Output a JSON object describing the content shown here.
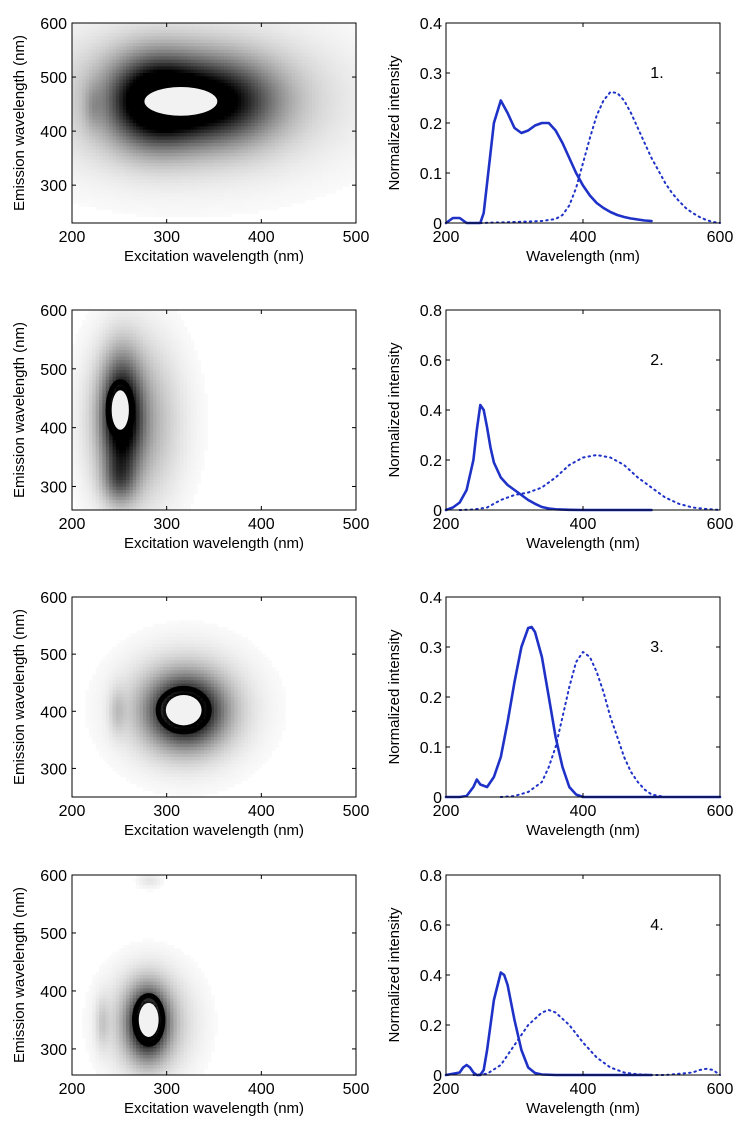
{
  "colors": {
    "spectrum": "#1f32c8",
    "axis": "#000000",
    "background": "#ffffff"
  },
  "panels": [
    {
      "contour": {
        "type": "heatmap",
        "xlabel": "Excitation wavelength (nm)",
        "ylabel": "Emission wavelength (nm)",
        "xlim": [
          200,
          500
        ],
        "ylim": [
          230,
          600
        ],
        "xticks": [
          200,
          300,
          400,
          500
        ],
        "yticks": [
          300,
          400,
          500,
          600
        ],
        "blobs": [
          {
            "cx": 285,
            "cy": 455,
            "sx": 32,
            "sy": 55,
            "a": 0.95
          },
          {
            "cx": 350,
            "cy": 455,
            "sx": 45,
            "sy": 52,
            "a": 0.85
          },
          {
            "cx": 320,
            "cy": 460,
            "sx": 110,
            "sy": 95,
            "a": 0.28
          },
          {
            "cx": 222,
            "cy": 445,
            "sx": 6,
            "sy": 28,
            "a": 0.12
          }
        ],
        "ring": {
          "x": 315,
          "y": 455,
          "rx": 55,
          "ry": 38
        }
      },
      "spectra": {
        "type": "line",
        "label": "1.",
        "xlabel": "Wavelength (nm)",
        "ylabel": "Normalized intensity",
        "xlim": [
          200,
          600
        ],
        "ylim": [
          0,
          0.4
        ],
        "xticks": [
          200,
          400,
          600
        ],
        "yticks": [
          0,
          0.1,
          0.2,
          0.3,
          0.4
        ],
        "series": [
          {
            "style": "solid",
            "x": [
              200,
              210,
              220,
              230,
              240,
              250,
              255,
              260,
              270,
              280,
              290,
              300,
              310,
              320,
              330,
              340,
              350,
              360,
              370,
              380,
              390,
              400,
              410,
              420,
              430,
              440,
              450,
              460,
              470,
              480,
              490,
              500
            ],
            "y": [
              0,
              0.01,
              0.01,
              0,
              0,
              0,
              0.02,
              0.08,
              0.2,
              0.245,
              0.22,
              0.19,
              0.18,
              0.185,
              0.195,
              0.2,
              0.2,
              0.185,
              0.16,
              0.13,
              0.1,
              0.075,
              0.055,
              0.04,
              0.03,
              0.022,
              0.016,
              0.012,
              0.009,
              0.007,
              0.005,
              0.004
            ]
          },
          {
            "style": "dotted",
            "x": [
              250,
              300,
              340,
              360,
              370,
              380,
              390,
              400,
              410,
              420,
              430,
              440,
              450,
              460,
              470,
              480,
              490,
              500,
              510,
              520,
              530,
              540,
              550,
              560,
              570,
              580,
              590,
              600
            ],
            "y": [
              0,
              0.002,
              0.004,
              0.008,
              0.016,
              0.035,
              0.07,
              0.12,
              0.17,
              0.215,
              0.245,
              0.262,
              0.26,
              0.245,
              0.22,
              0.19,
              0.16,
              0.13,
              0.105,
              0.08,
              0.06,
              0.044,
              0.03,
              0.02,
              0.012,
              0.006,
              0.002,
              0
            ]
          }
        ]
      }
    },
    {
      "contour": {
        "type": "heatmap",
        "xlabel": "Excitation wavelength (nm)",
        "ylabel": "Emission wavelength (nm)",
        "xlim": [
          200,
          500
        ],
        "ylim": [
          260,
          600
        ],
        "xticks": [
          200,
          300,
          400,
          500
        ],
        "yticks": [
          300,
          400,
          500,
          600
        ],
        "blobs": [
          {
            "cx": 252,
            "cy": 420,
            "sx": 14,
            "sy": 65,
            "a": 0.95
          },
          {
            "cx": 265,
            "cy": 410,
            "sx": 32,
            "sy": 95,
            "a": 0.38
          },
          {
            "cx": 250,
            "cy": 310,
            "sx": 12,
            "sy": 28,
            "a": 0.35
          }
        ],
        "ring": {
          "x": 251,
          "y": 430,
          "rx": 13,
          "ry": 48
        }
      },
      "spectra": {
        "type": "line",
        "label": "2.",
        "xlabel": "Wavelength (nm)",
        "ylabel": "Normalized intensity",
        "xlim": [
          200,
          600
        ],
        "ylim": [
          0,
          0.8
        ],
        "xticks": [
          200,
          400,
          600
        ],
        "yticks": [
          0,
          0.2,
          0.4,
          0.6,
          0.8
        ],
        "series": [
          {
            "style": "solid",
            "x": [
              200,
              210,
              220,
              230,
              240,
              245,
              250,
              255,
              260,
              265,
              270,
              280,
              290,
              300,
              310,
              320,
              330,
              340,
              350,
              360,
              380,
              400,
              450,
              500
            ],
            "y": [
              0,
              0.01,
              0.03,
              0.08,
              0.2,
              0.32,
              0.42,
              0.4,
              0.33,
              0.25,
              0.19,
              0.13,
              0.1,
              0.08,
              0.06,
              0.04,
              0.025,
              0.012,
              0.006,
              0.003,
              0.001,
              0,
              0,
              0
            ]
          },
          {
            "style": "dotted",
            "x": [
              220,
              240,
              260,
              280,
              300,
              320,
              340,
              360,
              380,
              400,
              420,
              440,
              460,
              480,
              500,
              520,
              540,
              560,
              580,
              600
            ],
            "y": [
              0,
              0.002,
              0.01,
              0.04,
              0.06,
              0.07,
              0.09,
              0.13,
              0.18,
              0.21,
              0.22,
              0.21,
              0.18,
              0.13,
              0.09,
              0.05,
              0.025,
              0.01,
              0.004,
              0
            ]
          }
        ]
      }
    },
    {
      "contour": {
        "type": "heatmap",
        "xlabel": "Excitation wavelength (nm)",
        "ylabel": "Emission wavelength (nm)",
        "xlim": [
          200,
          500
        ],
        "ylim": [
          250,
          600
        ],
        "xticks": [
          200,
          300,
          400,
          500
        ],
        "yticks": [
          300,
          400,
          500,
          600
        ],
        "blobs": [
          {
            "cx": 320,
            "cy": 400,
            "sx": 26,
            "sy": 40,
            "a": 0.95
          },
          {
            "cx": 320,
            "cy": 405,
            "sx": 45,
            "sy": 65,
            "a": 0.32
          },
          {
            "cx": 248,
            "cy": 400,
            "sx": 6,
            "sy": 28,
            "a": 0.16
          }
        ],
        "ring": {
          "x": 318,
          "y": 402,
          "rx": 27,
          "ry": 38
        }
      },
      "spectra": {
        "type": "line",
        "label": "3.",
        "xlabel": "Wavelength (nm)",
        "ylabel": "Normalized intensity",
        "xlim": [
          200,
          600
        ],
        "ylim": [
          0,
          0.4
        ],
        "xticks": [
          200,
          400,
          600
        ],
        "yticks": [
          0,
          0.1,
          0.2,
          0.3,
          0.4
        ],
        "series": [
          {
            "style": "solid",
            "x": [
              200,
              220,
              230,
              240,
              245,
              250,
              260,
              270,
              280,
              290,
              300,
              310,
              320,
              325,
              330,
              340,
              350,
              360,
              370,
              380,
              390,
              400,
              420,
              450,
              500,
              600
            ],
            "y": [
              0,
              0,
              0.002,
              0.02,
              0.035,
              0.025,
              0.02,
              0.04,
              0.08,
              0.15,
              0.23,
              0.3,
              0.338,
              0.34,
              0.33,
              0.28,
              0.2,
              0.12,
              0.06,
              0.02,
              0.005,
              0,
              0,
              0,
              0,
              0
            ]
          },
          {
            "style": "dotted",
            "x": [
              280,
              300,
              320,
              340,
              350,
              360,
              370,
              380,
              390,
              400,
              410,
              420,
              430,
              440,
              450,
              460,
              470,
              480,
              490,
              500,
              520,
              560,
              600
            ],
            "y": [
              0,
              0.002,
              0.01,
              0.03,
              0.06,
              0.1,
              0.16,
              0.22,
              0.27,
              0.29,
              0.28,
              0.25,
              0.21,
              0.16,
              0.12,
              0.08,
              0.05,
              0.03,
              0.015,
              0.005,
              0,
              0,
              0
            ]
          }
        ]
      }
    },
    {
      "contour": {
        "type": "heatmap",
        "xlabel": "Excitation wavelength (nm)",
        "ylabel": "Emission wavelength (nm)",
        "xlim": [
          200,
          500
        ],
        "ylim": [
          255,
          600
        ],
        "xticks": [
          200,
          300,
          400,
          500
        ],
        "yticks": [
          300,
          400,
          500,
          600
        ],
        "blobs": [
          {
            "cx": 280,
            "cy": 345,
            "sx": 14,
            "sy": 40,
            "a": 0.95
          },
          {
            "cx": 282,
            "cy": 345,
            "sx": 30,
            "sy": 60,
            "a": 0.32
          },
          {
            "cx": 282,
            "cy": 590,
            "sx": 9,
            "sy": 9,
            "a": 0.1
          },
          {
            "cx": 232,
            "cy": 345,
            "sx": 5,
            "sy": 30,
            "a": 0.15
          }
        ],
        "ring": {
          "x": 281,
          "y": 350,
          "rx": 15,
          "ry": 42
        }
      },
      "spectra": {
        "type": "line",
        "label": "4.",
        "xlabel": "Wavelength (nm)",
        "ylabel": "Normalized intensity",
        "xlim": [
          200,
          600
        ],
        "ylim": [
          0,
          0.8
        ],
        "xticks": [
          200,
          400,
          600
        ],
        "yticks": [
          0,
          0.2,
          0.4,
          0.6,
          0.8
        ],
        "series": [
          {
            "style": "solid",
            "x": [
              200,
              210,
              220,
              225,
              230,
              235,
              240,
              245,
              250,
              255,
              260,
              270,
              280,
              285,
              290,
              300,
              310,
              320,
              330,
              340,
              360,
              400,
              450,
              500
            ],
            "y": [
              0,
              0.005,
              0.01,
              0.03,
              0.04,
              0.03,
              0.01,
              0,
              0,
              0.02,
              0.1,
              0.3,
              0.41,
              0.4,
              0.36,
              0.22,
              0.1,
              0.03,
              0.008,
              0.002,
              0,
              0,
              0,
              0
            ]
          },
          {
            "style": "dotted",
            "x": [
              240,
              260,
              280,
              300,
              320,
              340,
              350,
              360,
              380,
              400,
              420,
              440,
              460,
              480,
              500,
              520,
              540,
              560,
              570,
              580,
              590,
              600
            ],
            "y": [
              0,
              0.005,
              0.04,
              0.12,
              0.2,
              0.25,
              0.26,
              0.25,
              0.2,
              0.13,
              0.07,
              0.03,
              0.01,
              0.003,
              0,
              0,
              0.005,
              0.01,
              0.02,
              0.025,
              0.02,
              0
            ]
          }
        ]
      }
    }
  ]
}
